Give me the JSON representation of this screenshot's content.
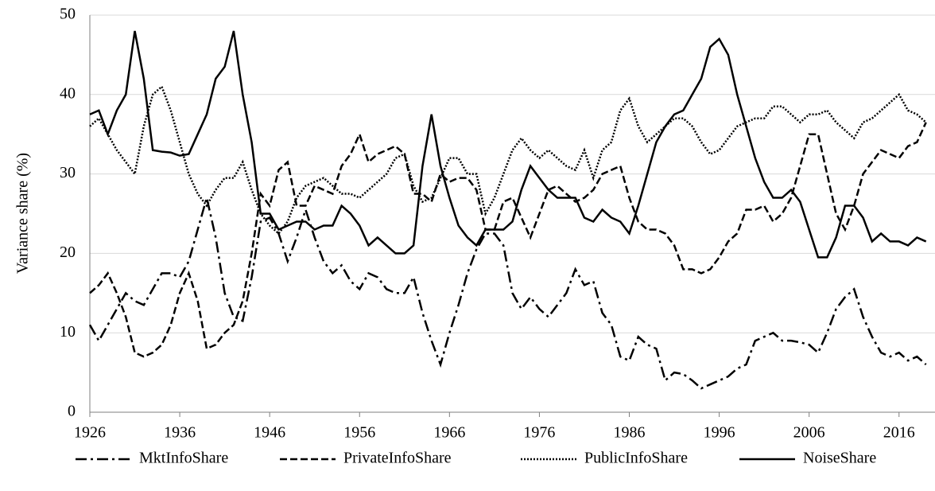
{
  "chart_data": {
    "type": "line",
    "ylabel": "Variance share (%)",
    "x": [
      1926,
      1927,
      1928,
      1929,
      1930,
      1931,
      1932,
      1933,
      1934,
      1935,
      1936,
      1937,
      1938,
      1939,
      1940,
      1941,
      1942,
      1943,
      1944,
      1945,
      1946,
      1947,
      1948,
      1949,
      1950,
      1951,
      1952,
      1953,
      1954,
      1955,
      1956,
      1957,
      1958,
      1959,
      1960,
      1961,
      1962,
      1963,
      1964,
      1965,
      1966,
      1967,
      1968,
      1969,
      1970,
      1971,
      1972,
      1973,
      1974,
      1975,
      1976,
      1977,
      1978,
      1979,
      1980,
      1981,
      1982,
      1983,
      1984,
      1985,
      1986,
      1987,
      1988,
      1989,
      1990,
      1991,
      1992,
      1993,
      1994,
      1995,
      1996,
      1997,
      1998,
      1999,
      2000,
      2001,
      2002,
      2003,
      2004,
      2005,
      2006,
      2007,
      2008,
      2009,
      2010,
      2011,
      2012,
      2013,
      2014,
      2015,
      2016,
      2017,
      2018,
      2019
    ],
    "series": [
      {
        "name": "MktInfoShare",
        "color": "#000000",
        "linestyle": "dashdot",
        "values": [
          11,
          9,
          11,
          13,
          15,
          14,
          13.5,
          15.5,
          17.5,
          17.5,
          17,
          19,
          23,
          27,
          22,
          15,
          12,
          11.5,
          17,
          24,
          24.5,
          22.5,
          19,
          22,
          25.5,
          22,
          19,
          17.5,
          18.5,
          16.5,
          15.5,
          17.5,
          17,
          15.5,
          15,
          15,
          17,
          12.5,
          9,
          6,
          10,
          13.5,
          17.5,
          20.5,
          22.5,
          22.5,
          21,
          15,
          13,
          14.5,
          13,
          12,
          13.5,
          15,
          18,
          16,
          16.5,
          12.5,
          11,
          7,
          6.5,
          9.5,
          8.5,
          8,
          4,
          5,
          4.8,
          4,
          3,
          3.5,
          4,
          4.5,
          5.5,
          6,
          9,
          9.5,
          10,
          9,
          9,
          8.8,
          8.5,
          7.5,
          10,
          13,
          14.5,
          15.5,
          12,
          9.5,
          7.5,
          7,
          7.5,
          6.5,
          7,
          6
        ]
      },
      {
        "name": "PrivateInfoShare",
        "color": "#000000",
        "linestyle": "dashed",
        "values": [
          15,
          16,
          17.5,
          15,
          12,
          7.5,
          7,
          7.5,
          8.5,
          11,
          15,
          17.5,
          14,
          8,
          8.5,
          10,
          11,
          14,
          20,
          27.5,
          26,
          30.5,
          31.5,
          26,
          26,
          28.5,
          28,
          27.5,
          31,
          32.5,
          35,
          31.5,
          32.5,
          33,
          33.5,
          32.5,
          27.5,
          27.5,
          26.5,
          30,
          29,
          29.5,
          29.5,
          28,
          23,
          23,
          26.5,
          27,
          24.5,
          22,
          25,
          28,
          28.5,
          27.5,
          26.5,
          27,
          28,
          30,
          30.5,
          31,
          27,
          24,
          23,
          23,
          22.5,
          21,
          18,
          18,
          17.5,
          18,
          19.5,
          21.5,
          22.5,
          25.5,
          25.5,
          26,
          24,
          25,
          27,
          31,
          35,
          35,
          30,
          25,
          23,
          26,
          30,
          31.5,
          33,
          32.5,
          32,
          33.5,
          34,
          36.5
        ]
      },
      {
        "name": "PublicInfoShare",
        "color": "#000000",
        "linestyle": "dotted",
        "values": [
          36,
          37,
          35,
          33,
          31.5,
          30,
          36,
          40,
          41,
          38,
          34,
          30,
          27.5,
          26,
          28,
          29.5,
          29.5,
          31.5,
          28,
          25,
          23.5,
          22.5,
          24,
          27,
          28.5,
          29,
          29.5,
          28.5,
          27.5,
          27.5,
          27,
          28,
          29,
          30,
          32,
          32.5,
          28.5,
          26.5,
          27,
          29.5,
          32,
          32,
          30,
          30,
          25,
          27,
          30,
          33,
          34.5,
          33,
          32,
          33,
          32,
          31,
          30.5,
          33,
          29.5,
          33,
          34,
          38,
          39.5,
          36,
          34,
          35,
          36,
          37,
          37,
          36,
          34,
          32.5,
          33,
          34.5,
          36,
          36.5,
          37,
          37,
          38.5,
          38.5,
          37.5,
          36.5,
          37.5,
          37.5,
          38,
          36.5,
          35.5,
          34.5,
          36.5,
          37,
          38,
          39,
          40,
          38,
          37.5,
          36.5
        ]
      },
      {
        "name": "NoiseShare",
        "color": "#000000",
        "linestyle": "solid",
        "values": [
          37.5,
          38,
          35,
          38,
          40,
          48,
          42,
          33,
          32.8,
          32.7,
          32.3,
          32.5,
          35,
          37.5,
          42,
          43.5,
          48,
          40,
          34,
          25,
          25,
          23,
          23.5,
          24,
          24,
          23,
          23.5,
          23.5,
          26,
          25,
          23.5,
          21,
          22,
          21,
          20,
          20,
          21,
          31,
          37.5,
          31,
          27,
          23.5,
          22,
          21,
          23,
          23,
          23,
          24,
          28,
          31,
          29.5,
          28,
          27,
          27,
          27,
          24.5,
          24,
          25.5,
          24.5,
          24,
          22.5,
          26,
          30,
          34,
          36,
          37.5,
          38,
          40,
          42,
          46,
          47,
          45,
          40,
          36,
          32,
          29,
          27,
          27,
          28,
          26.5,
          23,
          19.5,
          19.5,
          22,
          26,
          26,
          24.5,
          21.5,
          22.5,
          21.5,
          21.5,
          21,
          22,
          21.5
        ]
      }
    ],
    "xlim": [
      1926,
      2020
    ],
    "xticks": [
      1926,
      1936,
      1946,
      1956,
      1966,
      1976,
      1986,
      1996,
      2006,
      2016
    ],
    "ylim": [
      0,
      50
    ],
    "yticks": [
      0,
      10,
      20,
      30,
      40,
      50
    ],
    "grid": true,
    "legend": "bottom"
  }
}
